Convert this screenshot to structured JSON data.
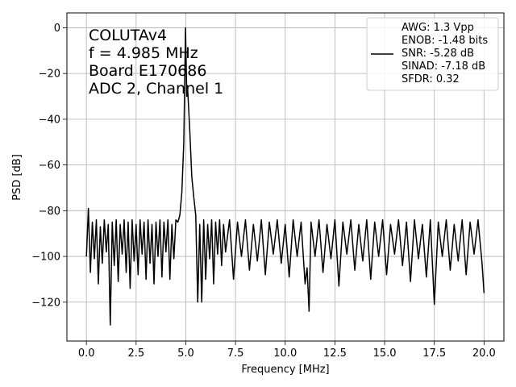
{
  "chart_data": {
    "type": "line",
    "title": "",
    "xlabel": "Frequency [MHz]",
    "ylabel": "PSD [dB]",
    "xlim": [
      -0.98,
      21.0
    ],
    "ylim": [
      -137,
      6.5
    ],
    "xticks": [
      0.0,
      2.5,
      5.0,
      7.5,
      10.0,
      12.5,
      15.0,
      17.5,
      20.0
    ],
    "xtick_labels": [
      "0.0",
      "2.5",
      "5.0",
      "7.5",
      "10.0",
      "12.5",
      "15.0",
      "17.5",
      "20.0"
    ],
    "yticks": [
      0,
      -20,
      -40,
      -60,
      -80,
      -100,
      -120
    ],
    "ytick_labels": [
      "0",
      "−20",
      "−40",
      "−60",
      "−80",
      "−100",
      "−120"
    ],
    "grid": true,
    "legend_placement": "top-right",
    "annotation_lines": [
      "COLUTAv4",
      "f = 4.985 MHz",
      "Board E170686",
      "ADC 2, Channel 1"
    ],
    "legend_lines": [
      "AWG: 1.3 Vpp",
      "ENOB: -1.48 bits",
      "SNR: -5.28 dB",
      "SINAD: -7.18 dB",
      "SFDR: 0.32"
    ],
    "series": [
      {
        "color": "#000000",
        "x": [
          0.0,
          0.1,
          0.2,
          0.3,
          0.4,
          0.5,
          0.6,
          0.7,
          0.8,
          0.9,
          1.0,
          1.1,
          1.2,
          1.3,
          1.4,
          1.5,
          1.6,
          1.7,
          1.8,
          1.9,
          2.0,
          2.1,
          2.2,
          2.3,
          2.4,
          2.5,
          2.6,
          2.7,
          2.8,
          2.9,
          3.0,
          3.1,
          3.2,
          3.3,
          3.4,
          3.5,
          3.6,
          3.7,
          3.8,
          3.9,
          4.0,
          4.1,
          4.2,
          4.3,
          4.4,
          4.5,
          4.6,
          4.7,
          4.8,
          4.9,
          4.985,
          5.05,
          5.1,
          5.2,
          5.3,
          5.4,
          5.5,
          5.6,
          5.7,
          5.8,
          5.9,
          6.0,
          6.1,
          6.2,
          6.3,
          6.4,
          6.5,
          6.6,
          6.7,
          6.8,
          6.9,
          7.0,
          7.2,
          7.4,
          7.6,
          7.8,
          8.0,
          8.2,
          8.4,
          8.6,
          8.8,
          9.0,
          9.2,
          9.4,
          9.6,
          9.8,
          10.0,
          10.2,
          10.4,
          10.6,
          10.8,
          11.0,
          11.1,
          11.2,
          11.3,
          11.5,
          11.7,
          11.9,
          12.1,
          12.3,
          12.5,
          12.7,
          12.9,
          13.1,
          13.3,
          13.5,
          13.7,
          13.9,
          14.1,
          14.3,
          14.5,
          14.7,
          14.9,
          15.1,
          15.3,
          15.5,
          15.7,
          15.9,
          16.1,
          16.3,
          16.5,
          16.7,
          16.9,
          17.1,
          17.3,
          17.5,
          17.7,
          17.9,
          18.1,
          18.3,
          18.5,
          18.7,
          18.9,
          19.1,
          19.3,
          19.5,
          19.7,
          19.9,
          20.0
        ],
        "y": [
          -100,
          -79,
          -107,
          -85,
          -101,
          -84,
          -112,
          -87,
          -103,
          -84,
          -98,
          -86,
          -130,
          -85,
          -104,
          -84,
          -111,
          -86,
          -99,
          -84,
          -107,
          -85,
          -114,
          -84,
          -102,
          -86,
          -108,
          -84,
          -99,
          -85,
          -110,
          -84,
          -103,
          -86,
          -112,
          -85,
          -100,
          -84,
          -109,
          -85,
          -98,
          -84,
          -110,
          -86,
          -101,
          -84,
          -85,
          -82,
          -72,
          -50,
          0,
          -30,
          -28,
          -45,
          -65,
          -74,
          -82,
          -120,
          -86,
          -120,
          -84,
          -110,
          -86,
          -101,
          -84,
          -112,
          -85,
          -99,
          -84,
          -104,
          -86,
          -98,
          -84,
          -110,
          -85,
          -100,
          -84,
          -106,
          -86,
          -102,
          -84,
          -108,
          -85,
          -99,
          -84,
          -103,
          -86,
          -109,
          -84,
          -100,
          -85,
          -112,
          -105,
          -124,
          -85,
          -100,
          -84,
          -107,
          -86,
          -101,
          -84,
          -113,
          -85,
          -99,
          -84,
          -106,
          -86,
          -102,
          -84,
          -110,
          -85,
          -100,
          -84,
          -108,
          -86,
          -99,
          -84,
          -104,
          -85,
          -111,
          -84,
          -101,
          -86,
          -109,
          -84,
          -121,
          -85,
          -100,
          -84,
          -106,
          -86,
          -102,
          -84,
          -108,
          -85,
          -99,
          -84,
          -103,
          -116
        ]
      }
    ]
  }
}
